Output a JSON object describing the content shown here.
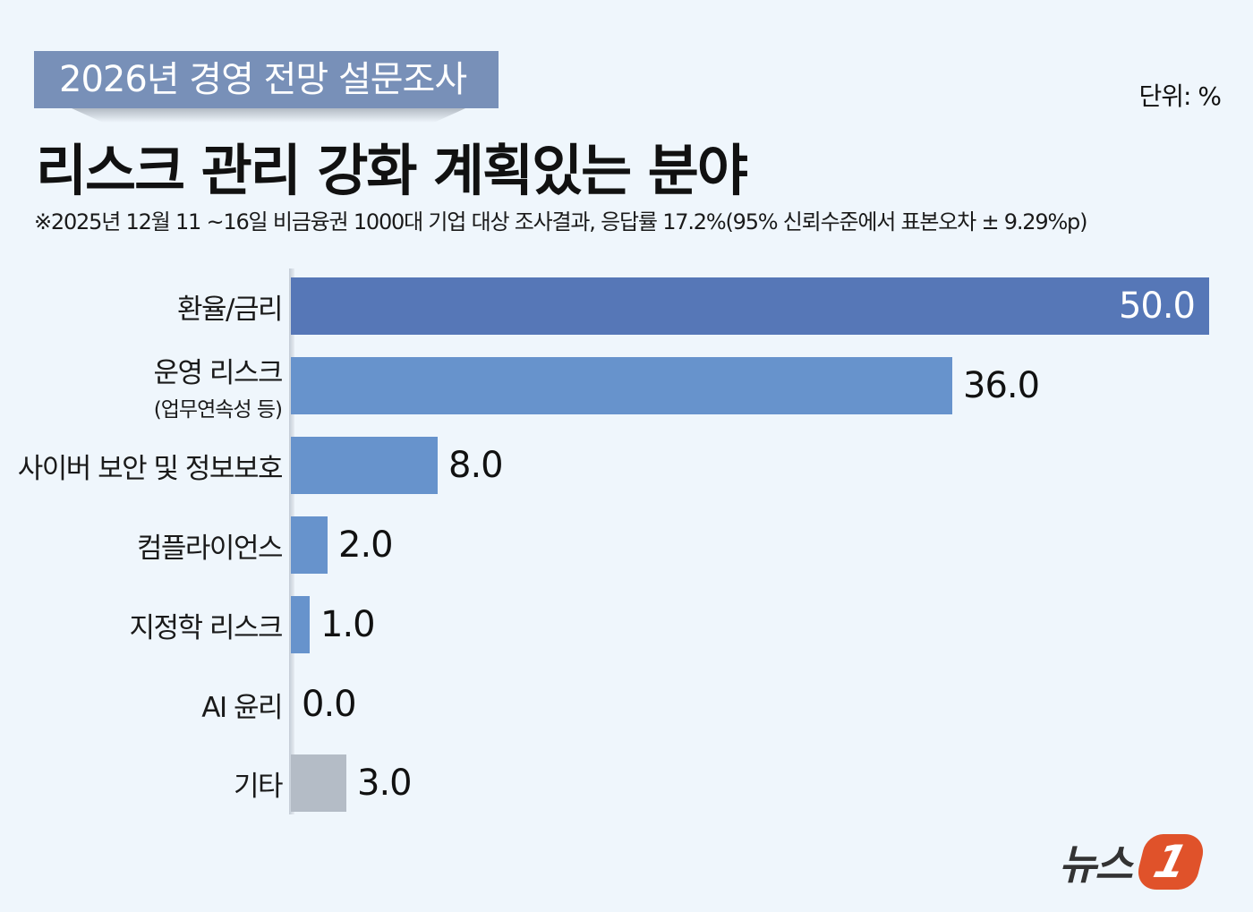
{
  "header": {
    "banner": "2026년 경영 전망 설문조사",
    "title": "리스크 관리 강화 계획있는 분야",
    "unit": "단위: %",
    "note": "※2025년 12월 11 ~16일 비금융권 1000대 기업 대상 조사결과, 응답률 17.2%(95% 신뢰수준에서 표본오차 ± 9.29%p)"
  },
  "rows": [
    {
      "label": "환율/금리",
      "sub": "",
      "value": "50.0",
      "color": "#5677b7",
      "inside": true
    },
    {
      "label": "운영 리스크",
      "sub": "(업무연속성 등)",
      "value": "36.0",
      "color": "#6793cc",
      "inside": false
    },
    {
      "label": "사이버 보안 및 정보보호",
      "sub": "",
      "value": "8.0",
      "color": "#6793cc",
      "inside": false
    },
    {
      "label": "컴플라이언스",
      "sub": "",
      "value": "2.0",
      "color": "#6793cc",
      "inside": false
    },
    {
      "label": "지정학 리스크",
      "sub": "",
      "value": "1.0",
      "color": "#6793cc",
      "inside": false
    },
    {
      "label": "AI 윤리",
      "sub": "",
      "value": "0.0",
      "color": "#6793cc",
      "inside": false
    },
    {
      "label": "기타",
      "sub": "",
      "value": "3.0",
      "color": "#b4bcc6",
      "inside": false
    }
  ],
  "logo": {
    "text": "뉴스",
    "mark": "1"
  },
  "chart_data": {
    "type": "bar",
    "orientation": "horizontal",
    "title": "리스크 관리 강화 계획있는 분야",
    "subtitle": "2026년 경영 전망 설문조사",
    "unit": "%",
    "categories": [
      "환율/금리",
      "운영 리스크 (업무연속성 등)",
      "사이버 보안 및 정보보호",
      "컴플라이언스",
      "지정학 리스크",
      "AI 윤리",
      "기타"
    ],
    "values": [
      50.0,
      36.0,
      8.0,
      2.0,
      1.0,
      0.0,
      3.0
    ],
    "xlabel": "",
    "ylabel": "",
    "xlim": [
      0,
      50
    ],
    "grid": false,
    "legend": null,
    "annotations": [
      "※2025년 12월 11 ~16일 비금융권 1000대 기업 대상 조사결과, 응답률 17.2%(95% 신뢰수준에서 표본오차 ± 9.29%p)"
    ]
  }
}
